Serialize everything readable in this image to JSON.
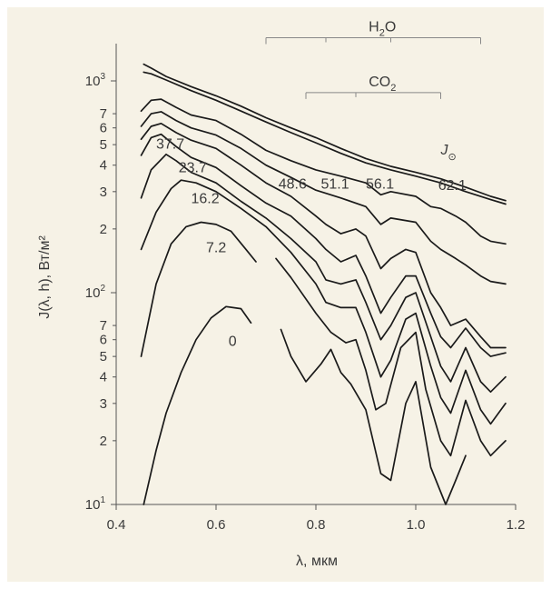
{
  "chart_data": {
    "type": "line",
    "title": "",
    "xlabel": "λ, мкм",
    "ylabel": "J(λ, h), Вт/м²",
    "xlim": [
      0.4,
      1.2
    ],
    "ylim_log": [
      10,
      1500
    ],
    "yscale": "log",
    "grid": false,
    "x_ticks": [
      {
        "value": 0.4,
        "label": "0.4"
      },
      {
        "value": 0.6,
        "label": "0.6"
      },
      {
        "value": 0.8,
        "label": "0.8"
      },
      {
        "value": 1.0,
        "label": "1.0"
      },
      {
        "value": 1.2,
        "label": "1.2"
      }
    ],
    "y_major_ticks": [
      {
        "value": 10,
        "base": "10",
        "exp": "1"
      },
      {
        "value": 100,
        "base": "10",
        "exp": "2"
      },
      {
        "value": 1000,
        "base": "10",
        "exp": "3"
      }
    ],
    "y_minor_ticks": [
      {
        "value": 20,
        "label": "2"
      },
      {
        "value": 30,
        "label": "3"
      },
      {
        "value": 40,
        "label": "4"
      },
      {
        "value": 50,
        "label": "5"
      },
      {
        "value": 60,
        "label": "6"
      },
      {
        "value": 70,
        "label": "7"
      },
      {
        "value": 200,
        "label": "2"
      },
      {
        "value": 300,
        "label": "3"
      },
      {
        "value": 400,
        "label": "4"
      },
      {
        "value": 500,
        "label": "5"
      },
      {
        "value": 600,
        "label": "6"
      },
      {
        "value": 700,
        "label": "7"
      }
    ],
    "bands": [
      {
        "label": "H",
        "sub": "2",
        "label_rest": "O",
        "x_start": 0.7,
        "x_end": 1.13,
        "y": 1600,
        "inner_ticks": [
          0.82,
          0.95
        ]
      },
      {
        "label": "CO",
        "sub": "2",
        "label_rest": "",
        "x_start": 0.78,
        "x_end": 1.05,
        "y": 880,
        "inner_ticks": [
          0.88
        ]
      }
    ],
    "series": [
      {
        "name": "J⊙",
        "label": "J",
        "label_sub": "⊙",
        "label_x": 1.05,
        "label_y": 450,
        "segments": [
          [
            [
              0.455,
              1200
            ],
            [
              0.47,
              1150
            ],
            [
              0.5,
              1050
            ],
            [
              0.55,
              940
            ],
            [
              0.6,
              850
            ],
            [
              0.65,
              760
            ],
            [
              0.7,
              670
            ],
            [
              0.75,
              600
            ],
            [
              0.8,
              540
            ],
            [
              0.85,
              480
            ],
            [
              0.9,
              430
            ],
            [
              0.95,
              395
            ],
            [
              1.0,
              370
            ],
            [
              1.05,
              345
            ],
            [
              1.1,
              315
            ],
            [
              1.15,
              285
            ],
            [
              1.18,
              272
            ]
          ]
        ]
      },
      {
        "name": "62.1",
        "label": "62.1",
        "label_x": 1.045,
        "label_y": 305,
        "segments": [
          [
            [
              0.455,
              1100
            ],
            [
              0.47,
              1080
            ],
            [
              0.5,
              1010
            ],
            [
              0.55,
              900
            ],
            [
              0.6,
              810
            ],
            [
              0.65,
              720
            ],
            [
              0.7,
              640
            ],
            [
              0.75,
              570
            ],
            [
              0.8,
              510
            ],
            [
              0.85,
              455
            ],
            [
              0.9,
              410
            ],
            [
              0.95,
              380
            ],
            [
              1.0,
              355
            ],
            [
              1.05,
              330
            ],
            [
              1.1,
              300
            ],
            [
              1.15,
              275
            ],
            [
              1.18,
              262
            ]
          ]
        ]
      },
      {
        "name": "56.1",
        "label": "56.1",
        "label_x": 0.9,
        "label_y": 310,
        "segments": [
          [
            [
              0.45,
              720
            ],
            [
              0.47,
              810
            ],
            [
              0.49,
              820
            ],
            [
              0.52,
              750
            ],
            [
              0.55,
              690
            ],
            [
              0.6,
              650
            ],
            [
              0.65,
              560
            ],
            [
              0.7,
              470
            ],
            [
              0.75,
              420
            ],
            [
              0.8,
              380
            ],
            [
              0.85,
              355
            ],
            [
              0.9,
              330
            ],
            [
              0.93,
              290
            ],
            [
              0.95,
              300
            ],
            [
              1.0,
              285
            ],
            [
              1.03,
              255
            ],
            [
              1.05,
              250
            ],
            [
              1.08,
              230
            ],
            [
              1.1,
              215
            ],
            [
              1.13,
              185
            ],
            [
              1.15,
              175
            ],
            [
              1.18,
              170
            ]
          ]
        ]
      },
      {
        "name": "51.1",
        "label": "51.1",
        "label_x": 0.81,
        "label_y": 310,
        "segments": [
          [
            [
              0.45,
              610
            ],
            [
              0.47,
              700
            ],
            [
              0.49,
              715
            ],
            [
              0.52,
              650
            ],
            [
              0.55,
              600
            ],
            [
              0.6,
              555
            ],
            [
              0.65,
              480
            ],
            [
              0.7,
              400
            ],
            [
              0.75,
              350
            ],
            [
              0.8,
              305
            ],
            [
              0.85,
              280
            ],
            [
              0.9,
              255
            ],
            [
              0.93,
              210
            ],
            [
              0.95,
              225
            ],
            [
              1.0,
              215
            ],
            [
              1.03,
              175
            ],
            [
              1.05,
              160
            ],
            [
              1.08,
              145
            ],
            [
              1.1,
              135
            ],
            [
              1.13,
              120
            ],
            [
              1.15,
              113
            ],
            [
              1.18,
              110
            ]
          ]
        ]
      },
      {
        "name": "48.6",
        "label": "48.6",
        "label_x": 0.725,
        "label_y": 310,
        "segments": [
          [
            [
              0.45,
              530
            ],
            [
              0.47,
              610
            ],
            [
              0.49,
              630
            ],
            [
              0.52,
              570
            ],
            [
              0.55,
              525
            ],
            [
              0.6,
              480
            ],
            [
              0.65,
              400
            ],
            [
              0.7,
              330
            ],
            [
              0.75,
              285
            ],
            [
              0.8,
              230
            ],
            [
              0.82,
              210
            ],
            [
              0.85,
              190
            ],
            [
              0.88,
              200
            ],
            [
              0.9,
              185
            ],
            [
              0.93,
              130
            ],
            [
              0.95,
              145
            ],
            [
              0.98,
              160
            ],
            [
              1.0,
              155
            ],
            [
              1.03,
              100
            ],
            [
              1.05,
              85
            ],
            [
              1.07,
              70
            ],
            [
              1.1,
              75
            ],
            [
              1.13,
              62
            ],
            [
              1.15,
              55
            ],
            [
              1.18,
              55
            ]
          ]
        ]
      },
      {
        "name": "37.7",
        "label": "37.7",
        "label_x": 0.48,
        "label_y": 480,
        "segments": [
          [
            [
              0.45,
              445
            ],
            [
              0.47,
              540
            ],
            [
              0.49,
              560
            ],
            [
              0.52,
              490
            ],
            [
              0.55,
              435
            ],
            [
              0.6,
              390
            ],
            [
              0.65,
              320
            ],
            [
              0.7,
              265
            ],
            [
              0.75,
              230
            ],
            [
              0.8,
              180
            ],
            [
              0.82,
              160
            ],
            [
              0.85,
              140
            ],
            [
              0.88,
              150
            ],
            [
              0.9,
              120
            ],
            [
              0.93,
              80
            ],
            [
              0.95,
              95
            ],
            [
              0.98,
              120
            ],
            [
              1.0,
              120
            ],
            [
              1.03,
              80
            ],
            [
              1.05,
              62
            ],
            [
              1.07,
              55
            ],
            [
              1.1,
              68
            ],
            [
              1.13,
              55
            ],
            [
              1.15,
              50
            ],
            [
              1.18,
              52
            ]
          ]
        ]
      },
      {
        "name": "23.7",
        "label": "23.7",
        "label_x": 0.525,
        "label_y": 370,
        "segments": [
          [
            [
              0.45,
              280
            ],
            [
              0.47,
              380
            ],
            [
              0.5,
              450
            ],
            [
              0.52,
              420
            ],
            [
              0.55,
              370
            ],
            [
              0.6,
              330
            ],
            [
              0.65,
              270
            ],
            [
              0.7,
              225
            ],
            [
              0.75,
              180
            ],
            [
              0.8,
              140
            ],
            [
              0.82,
              115
            ],
            [
              0.85,
              110
            ],
            [
              0.88,
              115
            ],
            [
              0.9,
              90
            ],
            [
              0.93,
              60
            ],
            [
              0.95,
              70
            ],
            [
              0.98,
              95
            ],
            [
              1.0,
              100
            ],
            [
              1.03,
              62
            ],
            [
              1.05,
              45
            ],
            [
              1.07,
              38
            ],
            [
              1.1,
              55
            ],
            [
              1.13,
              38
            ],
            [
              1.15,
              34
            ],
            [
              1.18,
              40
            ]
          ]
        ]
      },
      {
        "name": "16.2",
        "label": "16.2",
        "label_x": 0.55,
        "label_y": 265,
        "segments": [
          [
            [
              0.45,
              160
            ],
            [
              0.48,
              240
            ],
            [
              0.51,
              310
            ],
            [
              0.53,
              340
            ],
            [
              0.56,
              330
            ],
            [
              0.6,
              300
            ],
            [
              0.65,
              250
            ],
            [
              0.7,
              205
            ],
            [
              0.75,
              155
            ],
            [
              0.8,
              110
            ],
            [
              0.82,
              90
            ],
            [
              0.85,
              85
            ],
            [
              0.88,
              85
            ],
            [
              0.9,
              65
            ],
            [
              0.93,
              40
            ],
            [
              0.95,
              48
            ],
            [
              0.98,
              75
            ],
            [
              1.0,
              80
            ],
            [
              1.03,
              45
            ],
            [
              1.05,
              32
            ],
            [
              1.07,
              27
            ],
            [
              1.1,
              43
            ],
            [
              1.13,
              28
            ],
            [
              1.15,
              24
            ],
            [
              1.18,
              30
            ]
          ]
        ]
      },
      {
        "name": "7.2",
        "label": "7.2",
        "label_x": 0.58,
        "label_y": 155,
        "segments": [
          [
            [
              0.45,
              50
            ],
            [
              0.48,
              110
            ],
            [
              0.51,
              170
            ],
            [
              0.54,
              205
            ],
            [
              0.57,
              215
            ],
            [
              0.6,
              210
            ],
            [
              0.63,
              195
            ],
            [
              0.66,
              160
            ],
            [
              0.68,
              140
            ]
          ],
          [
            [
              0.72,
              145
            ],
            [
              0.75,
              118
            ],
            [
              0.8,
              80
            ],
            [
              0.83,
              65
            ],
            [
              0.86,
              58
            ],
            [
              0.88,
              60
            ],
            [
              0.9,
              43
            ],
            [
              0.92,
              28
            ],
            [
              0.94,
              30
            ],
            [
              0.97,
              55
            ],
            [
              1.0,
              65
            ],
            [
              1.02,
              35
            ],
            [
              1.05,
              20
            ],
            [
              1.07,
              17
            ],
            [
              1.1,
              31
            ],
            [
              1.13,
              20
            ],
            [
              1.15,
              17
            ],
            [
              1.18,
              20
            ]
          ]
        ]
      },
      {
        "name": "0",
        "label": "0",
        "label_x": 0.625,
        "label_y": 56,
        "segments": [
          [
            [
              0.455,
              10
            ],
            [
              0.48,
              18
            ],
            [
              0.5,
              27
            ],
            [
              0.53,
              42
            ],
            [
              0.56,
              60
            ],
            [
              0.59,
              76
            ],
            [
              0.62,
              86
            ],
            [
              0.65,
              84
            ],
            [
              0.67,
              72
            ]
          ],
          [
            [
              0.73,
              67
            ],
            [
              0.75,
              50
            ],
            [
              0.78,
              38
            ],
            [
              0.81,
              46
            ],
            [
              0.83,
              54
            ],
            [
              0.85,
              42
            ],
            [
              0.87,
              37
            ],
            [
              0.9,
              28
            ],
            [
              0.93,
              14
            ],
            [
              0.95,
              13
            ],
            [
              0.98,
              30
            ],
            [
              1.0,
              38
            ],
            [
              1.03,
              15
            ],
            [
              1.06,
              10
            ],
            [
              1.08,
              13
            ],
            [
              1.1,
              17
            ]
          ]
        ]
      }
    ]
  }
}
